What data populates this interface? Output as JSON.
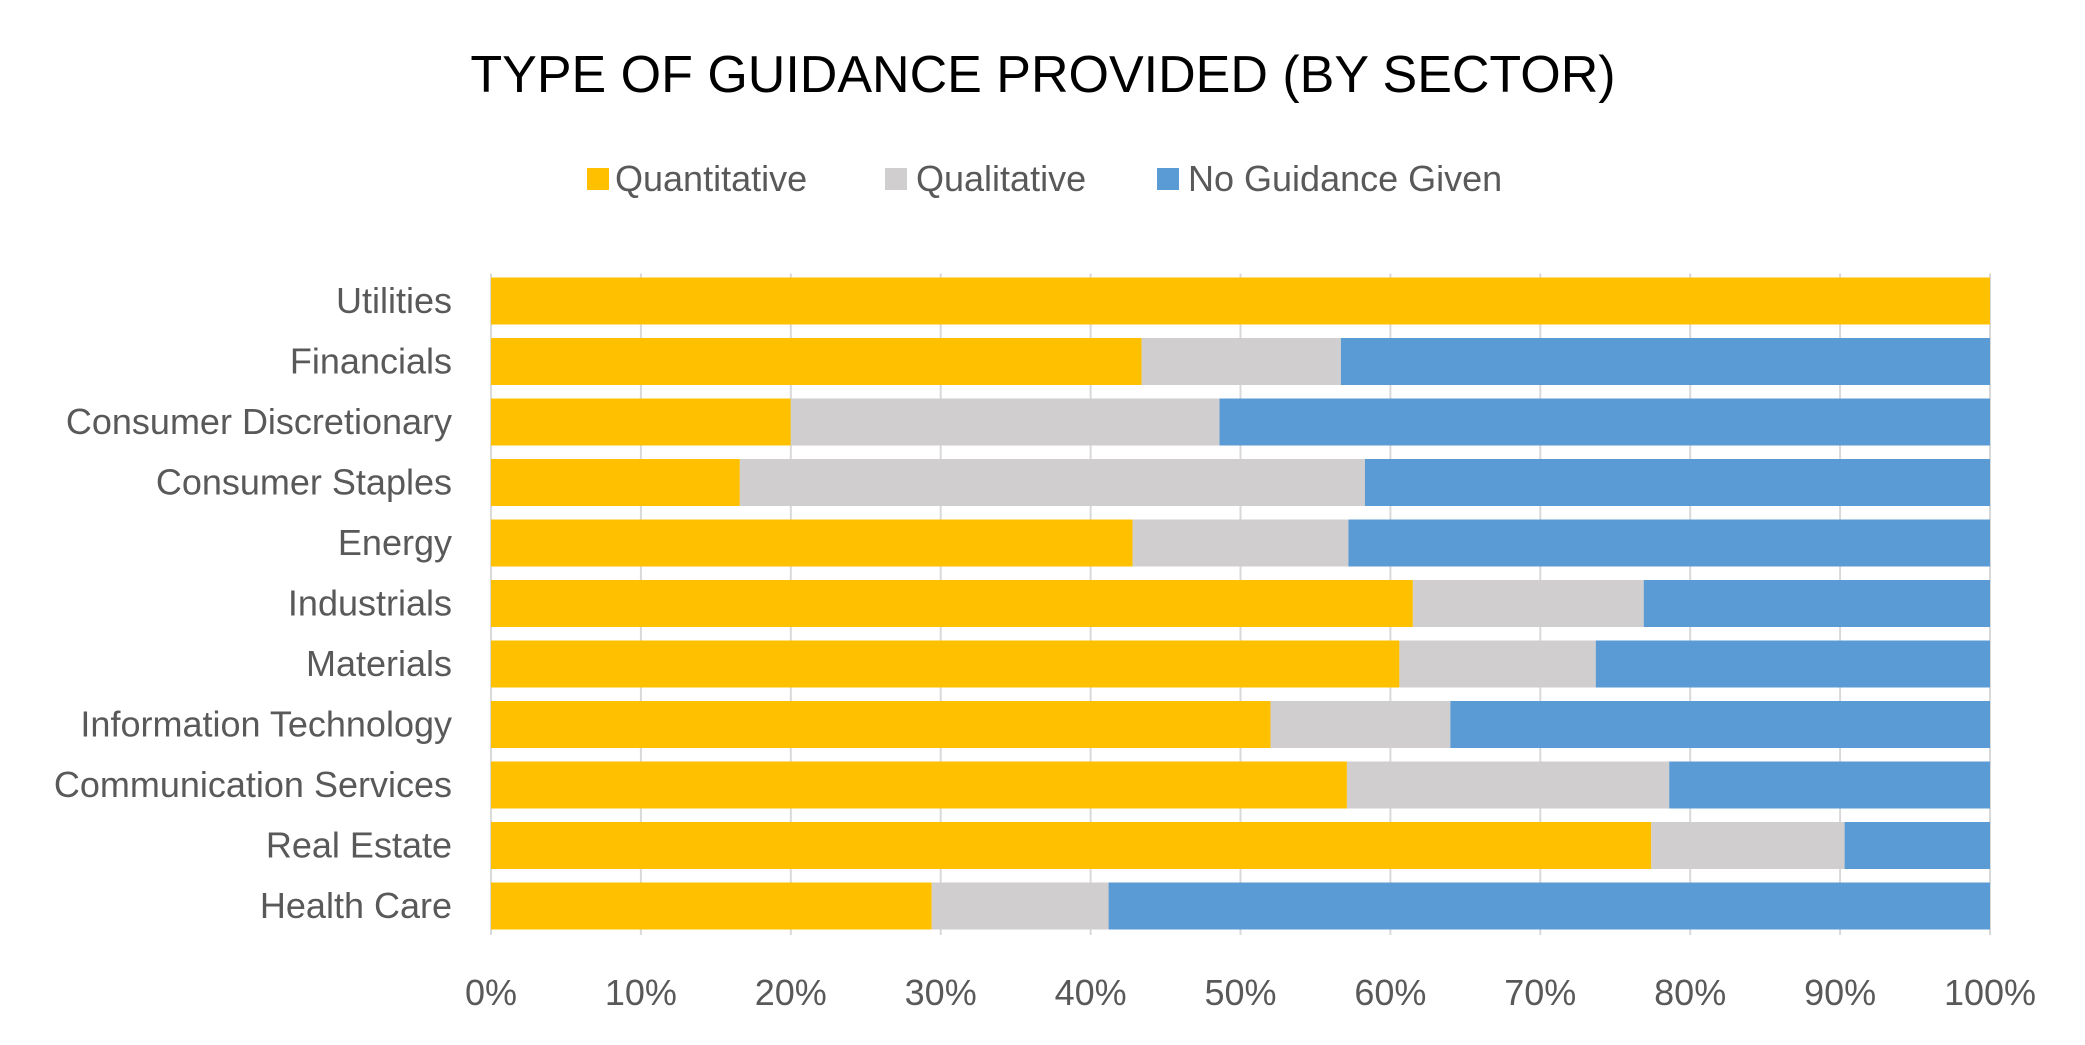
{
  "chart_data": {
    "type": "bar",
    "orientation": "horizontal",
    "stacked": "100%",
    "title": "TYPE OF GUIDANCE PROVIDED (BY SECTOR)",
    "xlabel": "",
    "ylabel": "",
    "xlim": [
      0,
      100
    ],
    "x_ticks": [
      "0%",
      "10%",
      "20%",
      "30%",
      "40%",
      "50%",
      "60%",
      "70%",
      "80%",
      "90%",
      "100%"
    ],
    "grid": "vertical",
    "legend_position": "top-center",
    "categories": [
      "Utilities",
      "Financials",
      "Consumer Discretionary",
      "Consumer Staples",
      "Energy",
      "Industrials",
      "Materials",
      "Information Technology",
      "Communication Services",
      "Real Estate",
      "Health Care"
    ],
    "series": [
      {
        "name": "Quantitative",
        "color": "#ffc000",
        "values": [
          100,
          43.4,
          20,
          16.6,
          42.8,
          61.5,
          60.6,
          52,
          57.1,
          77.4,
          29.4
        ]
      },
      {
        "name": "Qualitative",
        "color": "#d0cece",
        "values": [
          0,
          13.3,
          28.6,
          41.7,
          14.4,
          15.4,
          13.1,
          12,
          21.5,
          12.9,
          11.8
        ]
      },
      {
        "name": "No Guidance Given",
        "color": "#5b9bd5",
        "values": [
          0,
          43.3,
          51.4,
          41.7,
          42.8,
          23.1,
          26.3,
          36,
          21.4,
          9.7,
          58.8
        ]
      }
    ]
  }
}
